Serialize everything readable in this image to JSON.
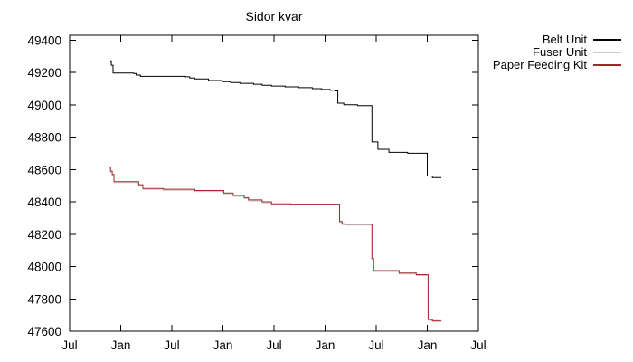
{
  "chart_data": {
    "type": "line",
    "title": "Sidor kvar",
    "subtitle": "",
    "grid": false,
    "legend_position": "outside-top-right",
    "x_axis": {
      "label": "",
      "unit": "month",
      "tick_labels": [
        "Jul",
        "Jan",
        "Jul",
        "Jan",
        "Jul",
        "Jan",
        "Jul",
        "Jan",
        "Jul"
      ],
      "tick_months": [
        0,
        6,
        12,
        18,
        24,
        30,
        36,
        42,
        48
      ],
      "range_months": [
        0,
        48
      ]
    },
    "y_axis": {
      "label": "",
      "tick_labels": [
        "49400",
        "49200",
        "49000",
        "48800",
        "48600",
        "48400",
        "48200",
        "48000",
        "47800",
        "47600"
      ],
      "tick_values": [
        49400,
        49200,
        49000,
        48800,
        48600,
        48400,
        48200,
        48000,
        47800,
        47600
      ],
      "range": [
        47600,
        49430
      ]
    },
    "series": [
      {
        "name": "Belt Unit",
        "color": "#000000",
        "points": [
          [
            4.78,
            49272
          ],
          [
            4.9,
            49245
          ],
          [
            5.1,
            49196
          ],
          [
            7.5,
            49193
          ],
          [
            7.8,
            49184
          ],
          [
            8.3,
            49176
          ],
          [
            13.6,
            49173
          ],
          [
            14.1,
            49166
          ],
          [
            14.7,
            49160
          ],
          [
            16.3,
            49150
          ],
          [
            17.9,
            49143
          ],
          [
            18.9,
            49138
          ],
          [
            20.0,
            49133
          ],
          [
            21.6,
            49127
          ],
          [
            22.6,
            49121
          ],
          [
            23.7,
            49116
          ],
          [
            25.3,
            49111
          ],
          [
            26.9,
            49106
          ],
          [
            28.5,
            49100
          ],
          [
            29.6,
            49095
          ],
          [
            30.6,
            49090
          ],
          [
            31.2,
            49086
          ],
          [
            31.5,
            49010
          ],
          [
            32.2,
            49000
          ],
          [
            33.8,
            48995
          ],
          [
            35.5,
            48770
          ],
          [
            36.2,
            48725
          ],
          [
            37.5,
            48706
          ],
          [
            39.7,
            48700
          ],
          [
            42.0,
            48560
          ],
          [
            42.6,
            48550
          ],
          [
            43.6,
            48547
          ]
        ]
      },
      {
        "name": "Fuser Unit",
        "color": "#c9c9c9",
        "points": [
          [
            4.56,
            48609
          ],
          [
            4.8,
            48584
          ],
          [
            5.0,
            48564
          ],
          [
            5.2,
            48519
          ],
          [
            8.1,
            48500
          ],
          [
            8.6,
            48477
          ],
          [
            11.0,
            48472
          ],
          [
            14.7,
            48464
          ],
          [
            18.1,
            48449
          ],
          [
            19.2,
            48434
          ],
          [
            20.5,
            48420
          ],
          [
            21.0,
            48406
          ],
          [
            22.6,
            48394
          ],
          [
            23.7,
            48382
          ],
          [
            26.0,
            48380
          ],
          [
            31.7,
            48272
          ],
          [
            32.0,
            48259
          ],
          [
            32.3,
            48256
          ],
          [
            35.5,
            48044
          ],
          [
            35.7,
            47969
          ],
          [
            38.7,
            47954
          ],
          [
            40.7,
            47944
          ],
          [
            42.1,
            47667
          ],
          [
            42.6,
            47659
          ],
          [
            43.6,
            47657
          ]
        ]
      },
      {
        "name": "Paper Feeding Kit",
        "color": "#9e2828",
        "points": [
          [
            4.56,
            48615
          ],
          [
            4.8,
            48590
          ],
          [
            5.0,
            48570
          ],
          [
            5.2,
            48525
          ],
          [
            8.1,
            48506
          ],
          [
            8.6,
            48483
          ],
          [
            11.0,
            48478
          ],
          [
            14.7,
            48470
          ],
          [
            18.1,
            48455
          ],
          [
            19.2,
            48440
          ],
          [
            20.5,
            48426
          ],
          [
            21.0,
            48412
          ],
          [
            22.6,
            48400
          ],
          [
            23.7,
            48388
          ],
          [
            26.0,
            48386
          ],
          [
            31.7,
            48278
          ],
          [
            32.0,
            48265
          ],
          [
            32.3,
            48262
          ],
          [
            35.5,
            48050
          ],
          [
            35.7,
            47975
          ],
          [
            38.7,
            47960
          ],
          [
            40.7,
            47950
          ],
          [
            42.1,
            47673
          ],
          [
            42.6,
            47665
          ],
          [
            43.6,
            47663
          ]
        ]
      }
    ]
  }
}
